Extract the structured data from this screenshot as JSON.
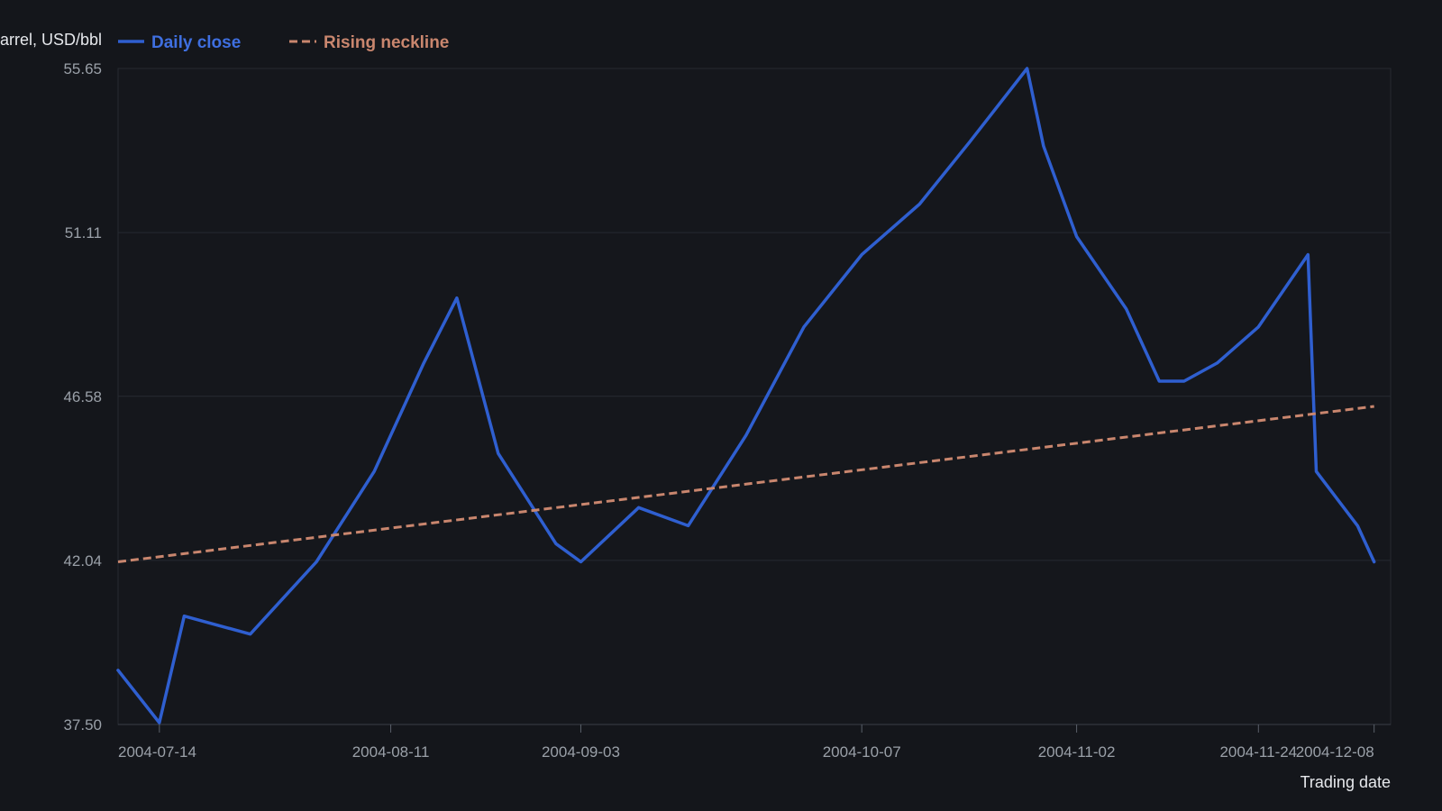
{
  "chart_data": {
    "type": "line",
    "ylabel": "Price per barrel, USD/bbl",
    "xlabel": "Trading date",
    "ylim": [
      37.5,
      55.65
    ],
    "y_ticks": [
      "37.50",
      "42.04",
      "46.58",
      "51.11",
      "55.65"
    ],
    "x_range": [
      "2004-07-09",
      "2004-12-10"
    ],
    "x_ticks": [
      "2004-07-14",
      "2004-08-11",
      "2004-09-03",
      "2004-10-07",
      "2004-11-02",
      "2004-11-24",
      "2004-12-08"
    ],
    "grid": true,
    "legend_position": "top-left",
    "series": [
      {
        "name": "Daily close",
        "color": "#2f5fd0",
        "style": "solid",
        "points": [
          [
            "2004-07-09",
            39.0
          ],
          [
            "2004-07-14",
            37.55
          ],
          [
            "2004-07-17",
            40.5
          ],
          [
            "2004-07-25",
            40.0
          ],
          [
            "2004-08-02",
            42.0
          ],
          [
            "2004-08-09",
            44.5
          ],
          [
            "2004-08-15",
            47.5
          ],
          [
            "2004-08-19",
            49.3
          ],
          [
            "2004-08-24",
            45.0
          ],
          [
            "2004-08-31",
            42.5
          ],
          [
            "2004-09-03",
            42.0
          ],
          [
            "2004-09-10",
            43.5
          ],
          [
            "2004-09-16",
            43.0
          ],
          [
            "2004-09-23",
            45.5
          ],
          [
            "2004-10-00",
            48.5
          ],
          [
            "2004-10-07",
            50.5
          ],
          [
            "2004-10-14",
            51.9
          ],
          [
            "2004-10-20",
            53.6
          ],
          [
            "2004-10-27",
            55.65
          ],
          [
            "2004-10-29",
            53.5
          ],
          [
            "2004-11-02",
            51.0
          ],
          [
            "2004-11-08",
            49.0
          ],
          [
            "2004-11-12",
            47.0
          ],
          [
            "2004-11-15",
            47.0
          ],
          [
            "2004-11-19",
            47.5
          ],
          [
            "2004-11-24",
            48.5
          ],
          [
            "2004-11-30",
            50.5
          ],
          [
            "2004-12-01",
            44.5
          ],
          [
            "2004-12-06",
            43.0
          ],
          [
            "2004-12-08",
            42.0
          ]
        ]
      },
      {
        "name": "Rising neckline",
        "color": "#c9866e",
        "style": "dashed",
        "points": [
          [
            "2004-07-09",
            42.0
          ],
          [
            "2004-12-08",
            46.3
          ]
        ]
      }
    ]
  }
}
